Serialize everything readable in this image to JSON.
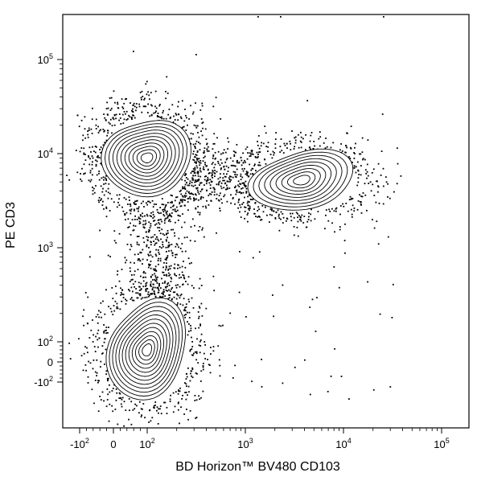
{
  "chart_data": {
    "type": "scatter",
    "subtype": "flow-cytometry-contour-with-outlier-dots",
    "title": "",
    "xlabel": "BD Horizon™ BV480 CD103",
    "ylabel": "PE CD3",
    "xscale": "biexponential",
    "yscale": "biexponential",
    "xlim": [
      -300,
      250000
    ],
    "ylim": [
      -500,
      250000
    ],
    "grid": false,
    "legend": "none",
    "x_ticks": [
      {
        "value": -100,
        "base": "-10",
        "exp": "2"
      },
      {
        "value": 0,
        "base": "0",
        "exp": ""
      },
      {
        "value": 100,
        "base": "10",
        "exp": "2"
      },
      {
        "value": 1000,
        "base": "10",
        "exp": "3"
      },
      {
        "value": 10000,
        "base": "10",
        "exp": "4"
      },
      {
        "value": 100000,
        "base": "10",
        "exp": "5"
      }
    ],
    "y_ticks": [
      {
        "value": -100,
        "base": "-10",
        "exp": "2"
      },
      {
        "value": 0,
        "base": "0",
        "exp": ""
      },
      {
        "value": 100,
        "base": "10",
        "exp": "2"
      },
      {
        "value": 1000,
        "base": "10",
        "exp": "3"
      },
      {
        "value": 10000,
        "base": "10",
        "exp": "4"
      },
      {
        "value": 100000,
        "base": "10",
        "exp": "5"
      }
    ],
    "populations": [
      {
        "name": "",
        "center": [
          100,
          9000
        ],
        "spread": [
          0.3,
          0.2
        ],
        "contour_levels": 11
      },
      {
        "name": "",
        "center": [
          3800,
          5200
        ],
        "spread": [
          0.28,
          0.12
        ],
        "contour_levels": 9
      },
      {
        "name": "",
        "center": [
          100,
          60
        ],
        "spread": [
          0.32,
          0.35
        ],
        "contour_levels": 12
      }
    ],
    "color": "#000000"
  }
}
